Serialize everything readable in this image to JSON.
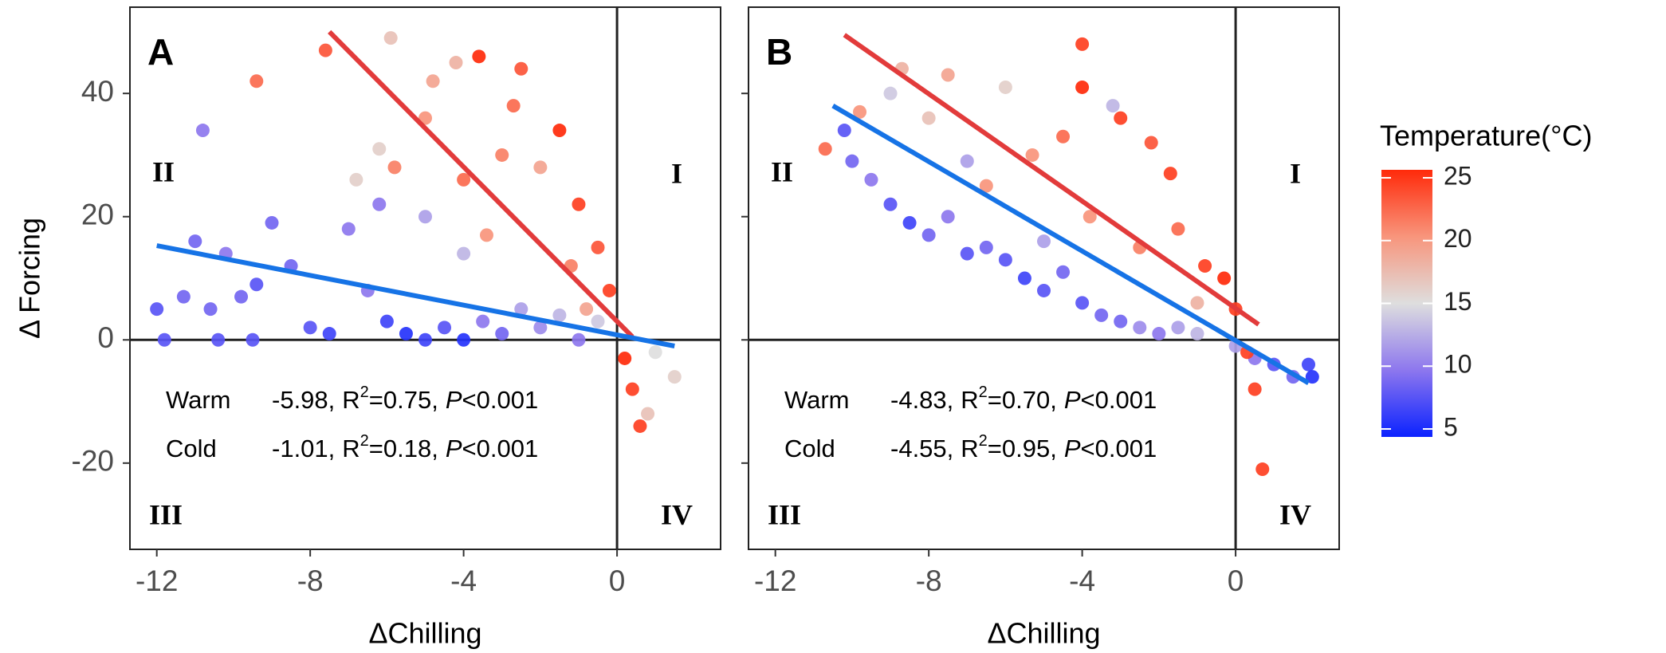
{
  "chart_data": [
    {
      "type": "scatter",
      "panel": "A",
      "x_label": "ΔChilling",
      "y_label": "Δ Forcing",
      "xlim": [
        -12.7,
        2.7
      ],
      "ylim": [
        -34,
        54
      ],
      "xticks": [
        -12,
        -8,
        -4,
        0
      ],
      "yticks": [
        -20,
        0,
        20,
        40
      ],
      "quadrant_labels": [
        "I",
        "II",
        "III",
        "IV"
      ],
      "points": {
        "x": [
          -12,
          -11.8,
          -11.3,
          -11,
          -10.6,
          -10.4,
          -10.2,
          -9.8,
          -9.5,
          -9.4,
          -9,
          -8.5,
          -8,
          -7.5,
          -7,
          -6.5,
          -6.2,
          -6,
          -5.5,
          -5,
          -4.5,
          -4,
          -3.5,
          -3,
          -2.5,
          -2,
          -1.5,
          -1,
          -0.5,
          1,
          1.5,
          0.8,
          -10.8,
          -6.2,
          -5,
          -4,
          -9.4,
          -7.6,
          -5.9,
          -4.2,
          -3.6,
          -2.5,
          -5.8,
          -5,
          -4,
          -3,
          -2,
          -1.5,
          -1,
          -0.5,
          -0.2,
          0.2,
          0.4,
          0.6,
          -2.7,
          -3.4,
          -1.2,
          -0.8,
          -6.8,
          -4.8
        ],
        "y": [
          5,
          0,
          7,
          16,
          5,
          0,
          14,
          7,
          0,
          9,
          19,
          12,
          2,
          1,
          18,
          8,
          22,
          3,
          1,
          0,
          2,
          0,
          3,
          1,
          5,
          2,
          4,
          0,
          3,
          -2,
          -6,
          -12,
          34,
          31,
          20,
          14,
          42,
          47,
          49,
          45,
          46,
          44,
          28,
          36,
          26,
          30,
          28,
          34,
          22,
          15,
          8,
          -3,
          -8,
          -14,
          38,
          17,
          12,
          5,
          26,
          42
        ],
        "temperature": [
          8,
          8,
          9,
          9,
          9,
          8,
          10,
          9,
          8,
          8,
          9,
          9,
          8,
          7,
          10,
          10,
          10,
          7,
          6,
          7,
          8,
          6,
          10,
          9,
          12,
          11,
          13,
          10,
          14,
          15,
          16,
          17,
          10,
          16,
          12,
          13,
          22,
          23,
          17,
          18,
          25,
          23,
          21,
          20,
          22,
          21,
          19,
          25,
          24,
          23,
          24,
          25,
          24,
          24,
          22,
          20,
          21,
          19,
          16,
          19
        ]
      },
      "fits": [
        {
          "name": "Warm",
          "color": "#e23b3b",
          "x": [
            -7.5,
            0.4
          ],
          "y": [
            50,
            0.5
          ],
          "slope": "-5.98,",
          "r": "R",
          "sup": "2",
          "r2": "=0.75,",
          "p": "P",
          "pval": "<0.001"
        },
        {
          "name": "Cold",
          "color": "#1673e6",
          "x": [
            -12,
            1.5
          ],
          "y": [
            15.3,
            -1
          ],
          "slope": "-1.01,",
          "r": "R",
          "sup": "2",
          "r2": "=0.18,",
          "p": "P",
          "pval": "<0.001"
        }
      ]
    },
    {
      "type": "scatter",
      "panel": "B",
      "x_label": "ΔChilling",
      "xlim": [
        -12.7,
        2.7
      ],
      "ylim": [
        -34,
        54
      ],
      "xticks": [
        -12,
        -8,
        -4,
        0
      ],
      "yticks": [
        -20,
        0,
        20,
        40
      ],
      "quadrant_labels": [
        "I",
        "II",
        "III",
        "IV"
      ],
      "points": {
        "x": [
          -10.2,
          -10,
          -9.5,
          -9,
          -8.5,
          -8,
          -7.5,
          -7,
          -6.5,
          -6,
          -5.5,
          -5,
          -4.5,
          -4,
          -3.5,
          -3,
          -2.5,
          -2,
          -1.5,
          -1,
          0,
          0.5,
          1,
          1.5,
          1.9,
          2,
          -7,
          -3.2,
          -5,
          -9,
          -10.7,
          -9.8,
          -8.7,
          -7.5,
          -6,
          -5.3,
          -4,
          -4,
          -3,
          -2.2,
          -1.7,
          -2.5,
          -1.5,
          -0.8,
          -0.3,
          0,
          0.3,
          0.5,
          0.7,
          -6.5,
          -3.8,
          -8,
          -1,
          -4.5
        ],
        "y": [
          34,
          29,
          26,
          22,
          19,
          17,
          20,
          14,
          15,
          13,
          10,
          8,
          11,
          6,
          4,
          3,
          2,
          1,
          2,
          1,
          -1,
          -3,
          -4,
          -6,
          -4,
          -6,
          29,
          38,
          16,
          40,
          31,
          37,
          44,
          43,
          41,
          30,
          48,
          41,
          36,
          32,
          27,
          15,
          18,
          12,
          10,
          5,
          -2,
          -8,
          -21,
          25,
          20,
          36,
          6,
          33
        ],
        "temperature": [
          8,
          9,
          10,
          8,
          7,
          9,
          10,
          8,
          9,
          8,
          7,
          8,
          9,
          8,
          9,
          9,
          11,
          10,
          12,
          13,
          12,
          10,
          8,
          9,
          7,
          6,
          12,
          13,
          12,
          14,
          22,
          20,
          18,
          19,
          16,
          20,
          24,
          25,
          24,
          23,
          24,
          21,
          22,
          24,
          25,
          24,
          24,
          24,
          24,
          20,
          20,
          17,
          18,
          22
        ]
      },
      "fits": [
        {
          "name": "Warm",
          "color": "#e23b3b",
          "x": [
            -10.2,
            0.6
          ],
          "y": [
            49.5,
            2.5
          ],
          "slope": "-4.83,",
          "r": "R",
          "sup": "2",
          "r2": "=0.70,",
          "p": "P",
          "pval": "<0.001"
        },
        {
          "name": "Cold",
          "color": "#1673e6",
          "x": [
            -10.5,
            1.9
          ],
          "y": [
            38,
            -7
          ],
          "slope": "-4.55,",
          "r": "R",
          "sup": "2",
          "r2": "=0.95,",
          "p": "P",
          "pval": "<0.001"
        }
      ]
    },
    {
      "type": "colorbar",
      "title": "Temperature(°C)",
      "lim": [
        5,
        25
      ],
      "ticks": [
        5,
        10,
        15,
        20,
        25
      ],
      "colors": [
        "#0b22ff",
        "#8d77ee",
        "#dedede",
        "#f8957c",
        "#ff2a0a"
      ]
    }
  ]
}
